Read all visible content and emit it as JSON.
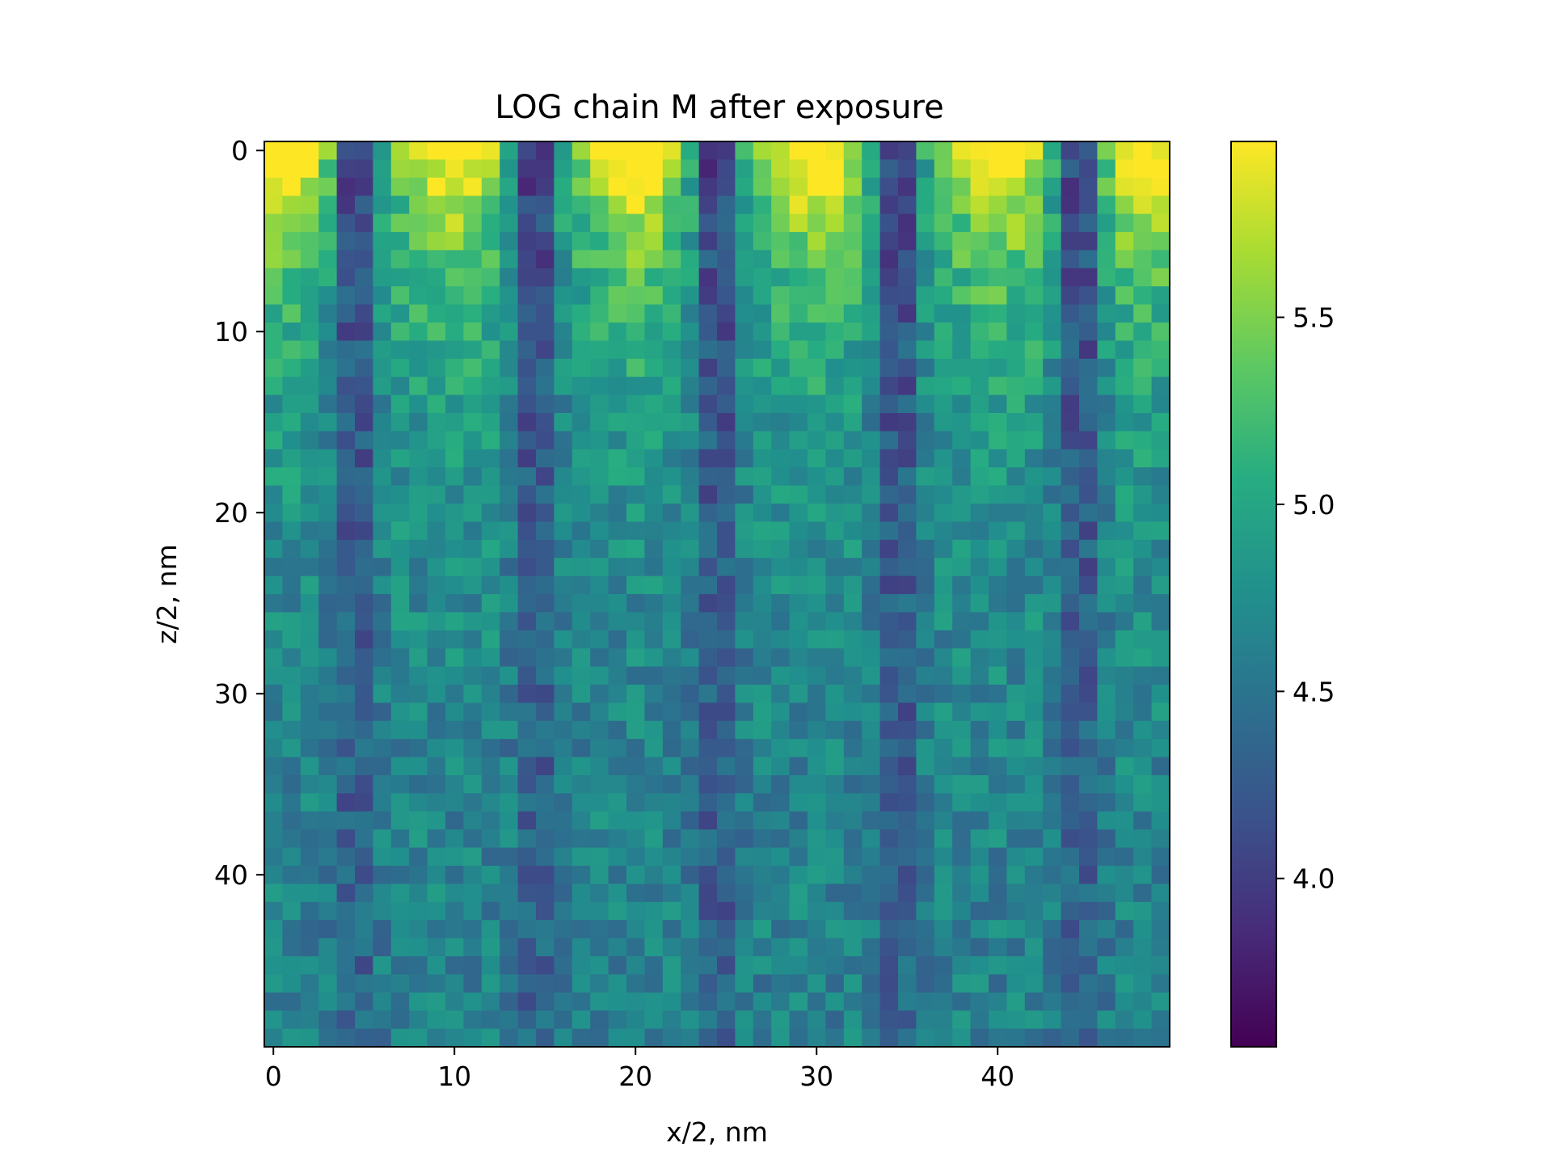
{
  "chart_data": {
    "type": "heatmap",
    "title": "LOG chain M after exposure",
    "xlabel": "x/2, nm",
    "ylabel": "z/2, nm",
    "grid": false,
    "colormap": "viridis",
    "nx": 50,
    "nz": 50,
    "x_range": [
      -0.5,
      49.5
    ],
    "z_range": [
      -0.5,
      49.5
    ],
    "z_axis_inverted": true,
    "x_ticks": [
      0,
      10,
      20,
      30,
      40
    ],
    "z_ticks": [
      0,
      10,
      20,
      30,
      40
    ],
    "x_tick_labels": [
      "0",
      "10",
      "20",
      "30",
      "40"
    ],
    "z_tick_labels": [
      "0",
      "10",
      "20",
      "30",
      "40"
    ],
    "colorbar": {
      "range": [
        3.55,
        5.97
      ],
      "ticks": [
        4.0,
        4.5,
        5.0,
        5.5
      ],
      "tick_labels": [
        "4.0",
        "4.5",
        "5.0",
        "5.5"
      ]
    },
    "value_model": {
      "dark_column_centers": [
        4.5,
        14.5,
        24.5,
        34.5,
        44.5
      ],
      "bright_column_centers": [
        1,
        10,
        20,
        30,
        40,
        48
      ],
      "surface_peak_value": 5.97,
      "dark_column_value": 3.8,
      "deep_background_value": 4.6,
      "decay_depth": 14
    }
  }
}
